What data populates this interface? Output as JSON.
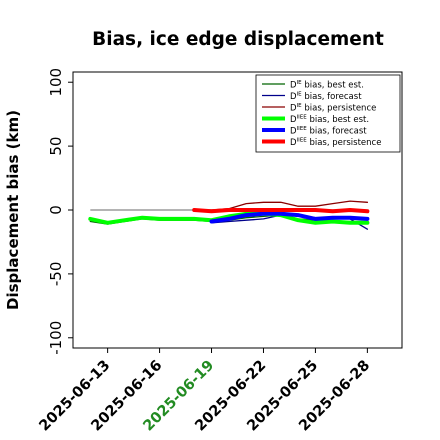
{
  "chart_data": {
    "type": "line",
    "title": "Bias, ice edge displacement",
    "xlabel": "",
    "ylabel": "Displacement bias (km)",
    "ylim": [
      -108,
      108
    ],
    "xlim": [
      "2025-06-11",
      "2025-06-30"
    ],
    "grid": false,
    "legend_position": "top-right",
    "yticks": [
      -100,
      -50,
      0,
      50,
      100
    ],
    "ytick_labels": [
      "-100",
      "-50",
      "0",
      "50",
      "100"
    ],
    "xticks": [
      "2025-06-13",
      "2025-06-16",
      "2025-06-19",
      "2025-06-22",
      "2025-06-25",
      "2025-06-28"
    ],
    "xtick_labels": [
      "2025-06-13",
      "2025-06-16",
      "2025-06-19",
      "2025-06-22",
      "2025-06-25",
      "2025-06-28"
    ],
    "highlight_tick": "2025-06-19",
    "highlight_color": "#228b22",
    "zero_line": 0,
    "series": [
      {
        "name": "D^IE bias, best est.",
        "name_base": "D",
        "name_sup": "IE",
        "name_rest": " bias, best est.",
        "color": "#006400",
        "width": 1.3,
        "points": [
          [
            "2025-06-12",
            -9
          ],
          [
            "2025-06-13",
            -11
          ],
          [
            "2025-06-14",
            -9
          ],
          [
            "2025-06-15",
            -7
          ],
          [
            "2025-06-16",
            -8
          ],
          [
            "2025-06-17",
            -8
          ],
          [
            "2025-06-18",
            -8
          ],
          [
            "2025-06-19",
            -9
          ],
          [
            "2025-06-20",
            -8
          ],
          [
            "2025-06-21",
            -6
          ],
          [
            "2025-06-22",
            -5
          ],
          [
            "2025-06-23",
            -4
          ],
          [
            "2025-06-24",
            -7
          ],
          [
            "2025-06-25",
            -8
          ],
          [
            "2025-06-26",
            -9
          ],
          [
            "2025-06-27",
            -9
          ],
          [
            "2025-06-28",
            -9
          ]
        ]
      },
      {
        "name": "D^IE bias, forecast",
        "name_base": "D",
        "name_sup": "IE",
        "name_rest": " bias, forecast",
        "color": "#00008b",
        "width": 1.3,
        "points": [
          [
            "2025-06-19",
            -10
          ],
          [
            "2025-06-20",
            -9
          ],
          [
            "2025-06-21",
            -8
          ],
          [
            "2025-06-22",
            -7
          ],
          [
            "2025-06-23",
            -4
          ],
          [
            "2025-06-24",
            -4
          ],
          [
            "2025-06-25",
            -6
          ],
          [
            "2025-06-26",
            -6
          ],
          [
            "2025-06-27",
            -7
          ],
          [
            "2025-06-28",
            -15
          ]
        ]
      },
      {
        "name": "D^IE bias, persistence",
        "name_base": "D",
        "name_sup": "IE",
        "name_rest": " bias, persistence",
        "color": "#8b0000",
        "width": 1.3,
        "points": [
          [
            "2025-06-18",
            0
          ],
          [
            "2025-06-19",
            0
          ],
          [
            "2025-06-20",
            1
          ],
          [
            "2025-06-21",
            5
          ],
          [
            "2025-06-22",
            6
          ],
          [
            "2025-06-23",
            6
          ],
          [
            "2025-06-24",
            3
          ],
          [
            "2025-06-25",
            3
          ],
          [
            "2025-06-26",
            5
          ],
          [
            "2025-06-27",
            7
          ],
          [
            "2025-06-28",
            6
          ]
        ]
      },
      {
        "name": "D^IIEE bias, best est.",
        "name_base": "D",
        "name_sup": "IIEE",
        "name_rest": " bias, best est.",
        "color": "#00ff00",
        "width": 4,
        "points": [
          [
            "2025-06-12",
            -7
          ],
          [
            "2025-06-13",
            -10
          ],
          [
            "2025-06-14",
            -8
          ],
          [
            "2025-06-15",
            -6
          ],
          [
            "2025-06-16",
            -7
          ],
          [
            "2025-06-17",
            -7
          ],
          [
            "2025-06-18",
            -7
          ],
          [
            "2025-06-19",
            -8
          ],
          [
            "2025-06-20",
            -5
          ],
          [
            "2025-06-21",
            -3
          ],
          [
            "2025-06-22",
            -3
          ],
          [
            "2025-06-23",
            -4
          ],
          [
            "2025-06-24",
            -8
          ],
          [
            "2025-06-25",
            -10
          ],
          [
            "2025-06-26",
            -9
          ],
          [
            "2025-06-27",
            -10
          ],
          [
            "2025-06-28",
            -10
          ]
        ]
      },
      {
        "name": "D^IIEE bias, forecast",
        "name_base": "D",
        "name_sup": "IIEE",
        "name_rest": " bias, forecast",
        "color": "#0000ff",
        "width": 4,
        "points": [
          [
            "2025-06-19",
            -9
          ],
          [
            "2025-06-20",
            -7
          ],
          [
            "2025-06-21",
            -4
          ],
          [
            "2025-06-22",
            -3
          ],
          [
            "2025-06-23",
            -3
          ],
          [
            "2025-06-24",
            -4
          ],
          [
            "2025-06-25",
            -7
          ],
          [
            "2025-06-26",
            -6
          ],
          [
            "2025-06-27",
            -6
          ],
          [
            "2025-06-28",
            -7
          ]
        ]
      },
      {
        "name": "D^IIEE bias, persistence",
        "name_base": "D",
        "name_sup": "IIEE",
        "name_rest": " bias, persistence",
        "color": "#ff0000",
        "width": 4,
        "points": [
          [
            "2025-06-18",
            0
          ],
          [
            "2025-06-19",
            -1
          ],
          [
            "2025-06-20",
            0
          ],
          [
            "2025-06-21",
            0
          ],
          [
            "2025-06-22",
            0
          ],
          [
            "2025-06-23",
            0
          ],
          [
            "2025-06-24",
            0
          ],
          [
            "2025-06-25",
            0
          ],
          [
            "2025-06-26",
            -1
          ],
          [
            "2025-06-27",
            0
          ],
          [
            "2025-06-28",
            -1
          ]
        ]
      }
    ]
  }
}
